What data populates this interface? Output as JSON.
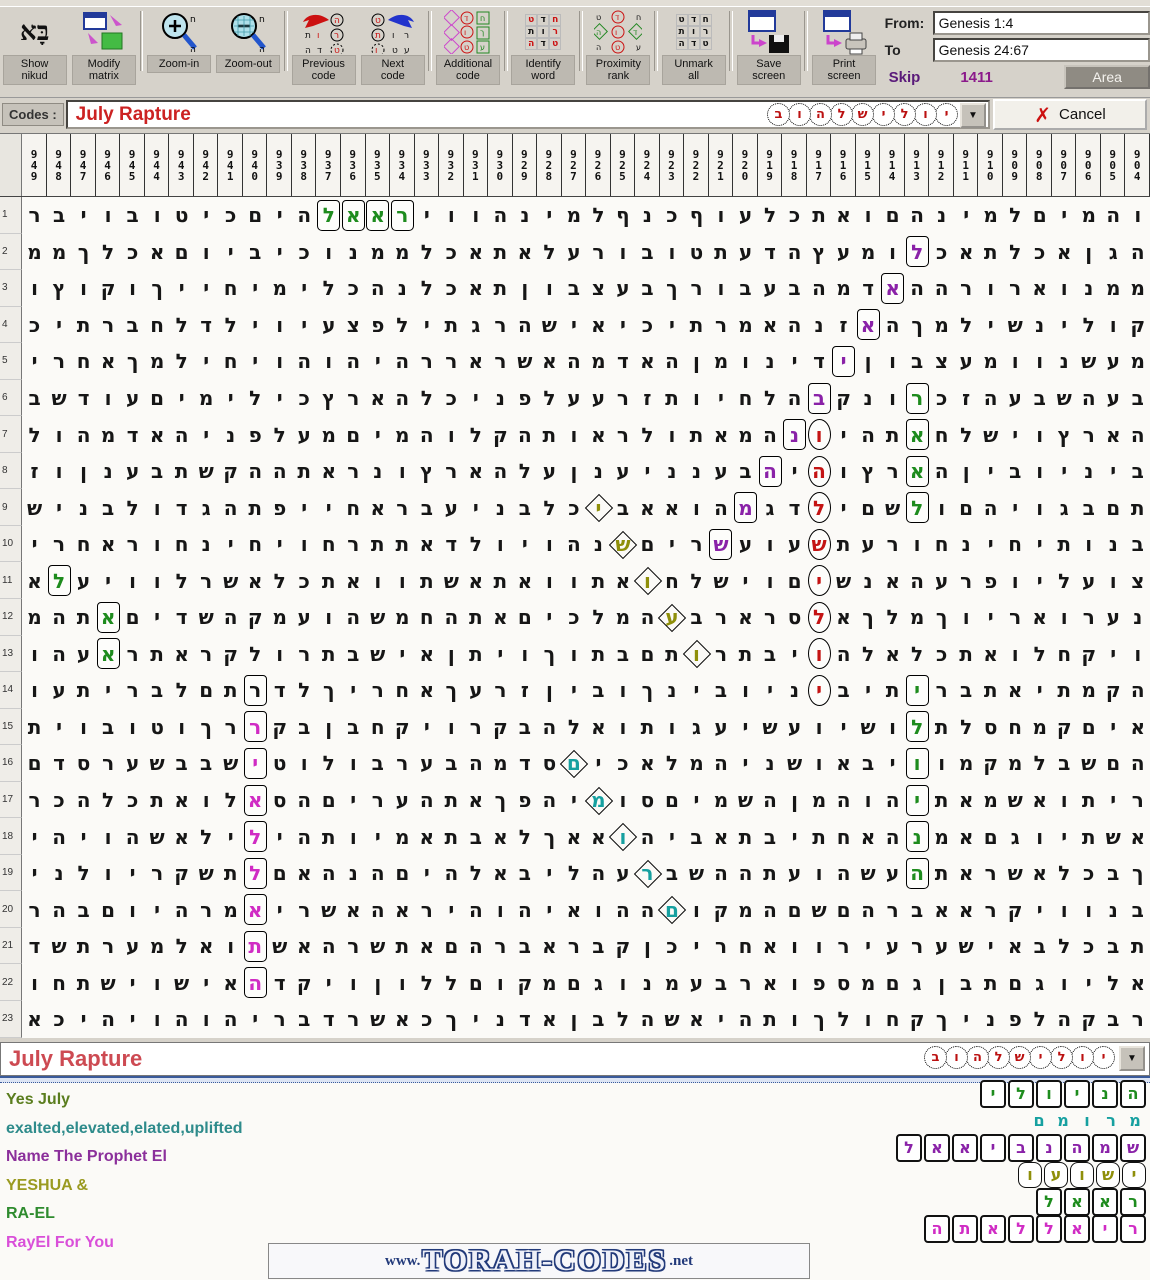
{
  "toolbar": {
    "buttons": [
      {
        "id": "show-nikud",
        "label": "Show\nnikud"
      },
      {
        "id": "modify-matrix",
        "label": "Modify\nmatrix"
      },
      {
        "id": "zoom-in",
        "label": "Zoom-in"
      },
      {
        "id": "zoom-out",
        "label": "Zoom-out"
      },
      {
        "id": "previous-code",
        "label": "Previous\ncode"
      },
      {
        "id": "next-code",
        "label": "Next\ncode"
      },
      {
        "id": "additional-code",
        "label": "Additional\ncode"
      },
      {
        "id": "identify-word",
        "label": "Identify\nword"
      },
      {
        "id": "proximity-rank",
        "label": "Proximity\nrank"
      },
      {
        "id": "unmark-all",
        "label": "Unmark\nall"
      },
      {
        "id": "save-screen",
        "label": "Save\nscreen"
      },
      {
        "id": "print-screen",
        "label": "Print\nscreen"
      }
    ],
    "from_label": "From:",
    "from_value": "Genesis 1:4",
    "to_label": "To",
    "to_value": "Genesis 24:67",
    "skip_label": "Skip",
    "skip_value": "1411",
    "area_label": "Area"
  },
  "codes_bar": {
    "label": "Codes :",
    "value": "July Rapture",
    "circled_letters": "יולישלהוב",
    "dropdown_icon": "▼",
    "cancel_label": "Cancel",
    "cancel_icon": "✗"
  },
  "matrix": {
    "col_headers": [
      "949",
      "948",
      "947",
      "946",
      "945",
      "944",
      "943",
      "942",
      "941",
      "940",
      "939",
      "938",
      "937",
      "936",
      "935",
      "934",
      "933",
      "932",
      "931",
      "930",
      "929",
      "928",
      "927",
      "926",
      "925",
      "924",
      "923",
      "922",
      "921",
      "920",
      "919",
      "918",
      "917",
      "916",
      "915",
      "914",
      "913",
      "912",
      "911",
      "910",
      "909",
      "908",
      "907",
      "906",
      "905",
      "904"
    ],
    "rows": [
      "והמיםלמינהםואתכלעוףכנףלמינהוויראאלהיםכיטובויבר",
      "הגןאכלתאכלומעץהדעתטובורעלאתאכלממנוכיביוםאכלךממ",
      "ממנוארורההאדמהבעבורךבעצבוןתאכלנהכלימיחייךוקוץו",
      "קולינשילמךהאזנהאמרתיכיאישהרגתילפצעיוילדלחברתיכ",
      "מעשנוומעצבוןידינומןהאדמהאשראררהיהוהויחילמךאחרי",
      "בעהשבעהזכרונקבהלחיותזרעעלפניכלהארץכילימיםעודשב",
      "הארץוישלחאתהיונהמאתולראותהקלוהמיםמעלפניהאדמהול",
      "ביניוביןהארץוהיהבענניענןעלהארץונראתההקשתבענןוז",
      "תםבגויהםולשםילדגמהואאביכלבניעבראחייפתהגדולבניש",
      "בנותיחינחורעתשעועשריםשנהויולדאתתרחויחינחוראחרי",
      "צועליופרעהאנשיםוישלחואתוואתאשתוואתכלאשרלוויעלא",
      "נערואריוךמלךאלסרארבעהמלכיםאתהחמשהועמקהשדיםאתהמ",
      "ויקחלואתכלאלהויבתרותםבתוךויתןאישבתרולקראתראעהו",
      "הקמתיאתבריתיביניובינךוביןזרעךאחריךלדרתםלבריתעו",
      "איםקמחסלתלושיועשיעגותואלהבקרויקחבןבקררךוטובוית",
      "הםשבלמקמוויבאושניהמלאכיםסדמהבערבולוטישבבשערסדם",
      "ריתואשמאתיהוהמןהשמיםסומיהפךאתהעריםהסאלואתכלהכר",
      "אשתיוגםאמנהאחתיבתאביהואאךלאבתאמיותהילילאשהויהי",
      "ךבכלאשראתהעשהועתההשברעהליבאלהיםהנהאםלתשקריולני",
      "בנוויקראאברהםשםהמקוםההואיהוהיראהאשריאמרהיוםבהר",
      "תבכלבאישערעירוואחריכןקבראברהםאתשרהאשתואלמערתשד",
      "אליוגםתבןגםמספוארבעמנוגםמקוםללוןויקדהאישוישתחו",
      "רבקהלפניךקחולךותהיאשהלבןאדניךכאשרדבריהוהויהיכא"
    ],
    "highlights": [
      {
        "r": 1,
        "p": 31,
        "c": "green",
        "s": "box"
      },
      {
        "r": 1,
        "p": 32,
        "c": "green",
        "s": "box"
      },
      {
        "r": 1,
        "p": 33,
        "c": "green",
        "s": "box"
      },
      {
        "r": 1,
        "p": 34,
        "c": "green",
        "s": "box"
      },
      {
        "r": 2,
        "p": 10,
        "c": "purple",
        "s": "box"
      },
      {
        "r": 3,
        "p": 11,
        "c": "purple",
        "s": "box"
      },
      {
        "r": 4,
        "p": 12,
        "c": "purple",
        "s": "box"
      },
      {
        "r": 5,
        "p": 13,
        "c": "purple",
        "s": "box"
      },
      {
        "r": 6,
        "p": 14,
        "c": "purple",
        "s": "box"
      },
      {
        "r": 6,
        "p": 10,
        "c": "green",
        "s": "box"
      },
      {
        "r": 7,
        "p": 15,
        "c": "purple",
        "s": "box"
      },
      {
        "r": 7,
        "p": 14,
        "c": "red",
        "s": "circle"
      },
      {
        "r": 7,
        "p": 10,
        "c": "green",
        "s": "box"
      },
      {
        "r": 8,
        "p": 16,
        "c": "purple",
        "s": "box"
      },
      {
        "r": 8,
        "p": 14,
        "c": "red",
        "s": "circle"
      },
      {
        "r": 8,
        "p": 10,
        "c": "green",
        "s": "box"
      },
      {
        "r": 9,
        "p": 17,
        "c": "purple",
        "s": "box"
      },
      {
        "r": 9,
        "p": 14,
        "c": "red",
        "s": "circle"
      },
      {
        "r": 9,
        "p": 10,
        "c": "green",
        "s": "box"
      },
      {
        "r": 9,
        "p": 23,
        "c": "olive",
        "s": "dia"
      },
      {
        "r": 10,
        "p": 18,
        "c": "purple",
        "s": "box"
      },
      {
        "r": 10,
        "p": 14,
        "c": "red",
        "s": "circle"
      },
      {
        "r": 10,
        "p": 22,
        "c": "olive",
        "s": "dia"
      },
      {
        "r": 11,
        "p": 14,
        "c": "red",
        "s": "circle"
      },
      {
        "r": 11,
        "p": 21,
        "c": "olive",
        "s": "dia"
      },
      {
        "r": 11,
        "p": 45,
        "c": "green",
        "s": "box"
      },
      {
        "r": 12,
        "p": 14,
        "c": "red",
        "s": "circle"
      },
      {
        "r": 12,
        "p": 20,
        "c": "olive",
        "s": "dia"
      },
      {
        "r": 12,
        "p": 43,
        "c": "green",
        "s": "box"
      },
      {
        "r": 13,
        "p": 14,
        "c": "red",
        "s": "circle"
      },
      {
        "r": 13,
        "p": 19,
        "c": "olive",
        "s": "dia"
      },
      {
        "r": 13,
        "p": 43,
        "c": "green",
        "s": "box"
      },
      {
        "r": 14,
        "p": 14,
        "c": "red",
        "s": "circle"
      },
      {
        "r": 14,
        "p": 10,
        "c": "green",
        "s": "box"
      },
      {
        "r": 14,
        "p": 37,
        "c": "plain",
        "s": "box"
      },
      {
        "r": 15,
        "p": 10,
        "c": "green",
        "s": "box"
      },
      {
        "r": 15,
        "p": 37,
        "c": "magenta",
        "s": "box"
      },
      {
        "r": 16,
        "p": 10,
        "c": "green",
        "s": "box"
      },
      {
        "r": 16,
        "p": 24,
        "c": "teal",
        "s": "dia"
      },
      {
        "r": 16,
        "p": 37,
        "c": "magenta",
        "s": "box"
      },
      {
        "r": 17,
        "p": 10,
        "c": "green",
        "s": "box"
      },
      {
        "r": 17,
        "p": 23,
        "c": "teal",
        "s": "dia"
      },
      {
        "r": 17,
        "p": 37,
        "c": "magenta",
        "s": "box"
      },
      {
        "r": 18,
        "p": 10,
        "c": "green",
        "s": "box"
      },
      {
        "r": 18,
        "p": 22,
        "c": "teal",
        "s": "dia"
      },
      {
        "r": 18,
        "p": 37,
        "c": "magenta",
        "s": "box"
      },
      {
        "r": 19,
        "p": 10,
        "c": "green",
        "s": "box"
      },
      {
        "r": 19,
        "p": 21,
        "c": "teal",
        "s": "dia"
      },
      {
        "r": 19,
        "p": 37,
        "c": "magenta",
        "s": "box"
      },
      {
        "r": 20,
        "p": 20,
        "c": "teal",
        "s": "dia"
      },
      {
        "r": 20,
        "p": 37,
        "c": "magenta",
        "s": "box"
      },
      {
        "r": 21,
        "p": 37,
        "c": "magenta",
        "s": "box"
      },
      {
        "r": 22,
        "p": 37,
        "c": "magenta",
        "s": "box"
      }
    ]
  },
  "legend": {
    "title": "July Rapture",
    "title_color": "#cd4a52",
    "circled_letters": "יולישלהוב",
    "dropdown_icon": "▼",
    "entries": [
      {
        "label": "Yes July",
        "color": "#5a7d1e",
        "letters": "הניולי",
        "shape": "box",
        "letter_color": "#1e8c1e"
      },
      {
        "label": "exalted,elevated,elated,uplifted",
        "color": "#2e8b8b",
        "letters": "מרומם",
        "shape": "dia",
        "letter_color": "#16a0a0"
      },
      {
        "label": "Name The Prophet El",
        "color": "#8b2f9b",
        "letters": "שמהנביאאל",
        "shape": "box",
        "letter_color": "#8a22a8"
      },
      {
        "label": "YESHUA &",
        "color": "#9a9a20",
        "letters": "ישועו",
        "shape": "oct",
        "letter_color": "#8f8f0a"
      },
      {
        "label": "RA-EL",
        "color": "#2e8b2e",
        "letters": "ראאל",
        "shape": "box",
        "letter_color": "#1e8c1e"
      },
      {
        "label": "RayEl For You",
        "color": "#d94fd9",
        "letters": "ריאללאתה",
        "shape": "box",
        "letter_color": "#d02cc4"
      }
    ]
  },
  "watermark": {
    "prefix": "www.",
    "name": "TORAH-CODES",
    "suffix": ".net"
  }
}
